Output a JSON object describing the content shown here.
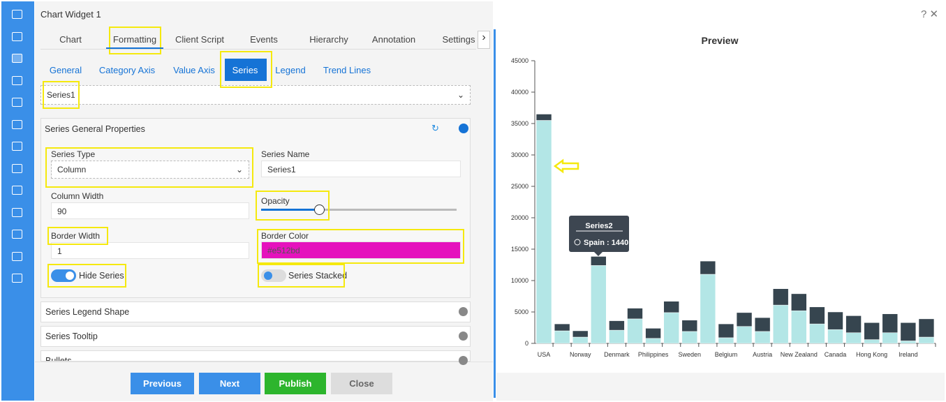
{
  "header": {
    "title": "Chart Widget 1"
  },
  "tabs": [
    "Chart",
    "Formatting",
    "Client Script",
    "Events",
    "Hierarchy",
    "Annotation",
    "Settings"
  ],
  "subtabs": [
    "General",
    "Category Axis",
    "Value Axis",
    "Series",
    "Legend",
    "Trend Lines"
  ],
  "series_select": "Series1",
  "section": {
    "title": "Series General Properties",
    "series_type_label": "Series Type",
    "series_type": "Column",
    "series_name_label": "Series Name",
    "series_name": "Series1",
    "column_width_label": "Column Width",
    "column_width": 90,
    "opacity_label": "Opacity",
    "border_width_label": "Border Width",
    "border_width": 1,
    "border_color_label": "Border Color",
    "border_color": "#e512bd",
    "hide_series_label": "Hide Series",
    "hide_series": true,
    "series_stacked_label": "Series Stacked",
    "series_stacked": false
  },
  "collapsed_sections": [
    "Series Legend Shape",
    "Series Tooltip",
    "Bullets"
  ],
  "buttons": [
    "Previous",
    "Next",
    "Publish",
    "Close"
  ],
  "preview": {
    "title": "Preview"
  },
  "chart_data": {
    "type": "bar",
    "stacked": true,
    "categories": [
      "USA",
      null,
      "Norway",
      null,
      "Denmark",
      null,
      "Philippines",
      null,
      "Sweden",
      null,
      "Belgium",
      null,
      "Austria",
      null,
      "New Zealand",
      null,
      "Canada",
      null,
      "Hong Kong",
      null,
      "Ireland",
      null
    ],
    "series": [
      {
        "color": "#b3e6e6",
        "values": [
          35500,
          2000,
          1000,
          12400,
          2100,
          3900,
          800,
          4900,
          1900,
          11000,
          900,
          2700,
          1900,
          6100,
          5200,
          3100,
          2200,
          1700,
          600,
          1700,
          400,
          1000
        ]
      },
      {
        "color": "#36454f",
        "values": [
          1000,
          1100,
          1000,
          1440,
          1500,
          1700,
          1600,
          1800,
          1800,
          2100,
          2200,
          2200,
          2200,
          2600,
          2700,
          2700,
          2800,
          2700,
          2700,
          3000,
          2900,
          2900
        ]
      }
    ],
    "ylim": [
      0,
      45000
    ],
    "yticks": [
      0,
      5000,
      10000,
      15000,
      20000,
      25000,
      30000,
      35000,
      40000,
      45000
    ],
    "tooltip": {
      "title": "Series2",
      "text": "Spain : 1440"
    }
  }
}
